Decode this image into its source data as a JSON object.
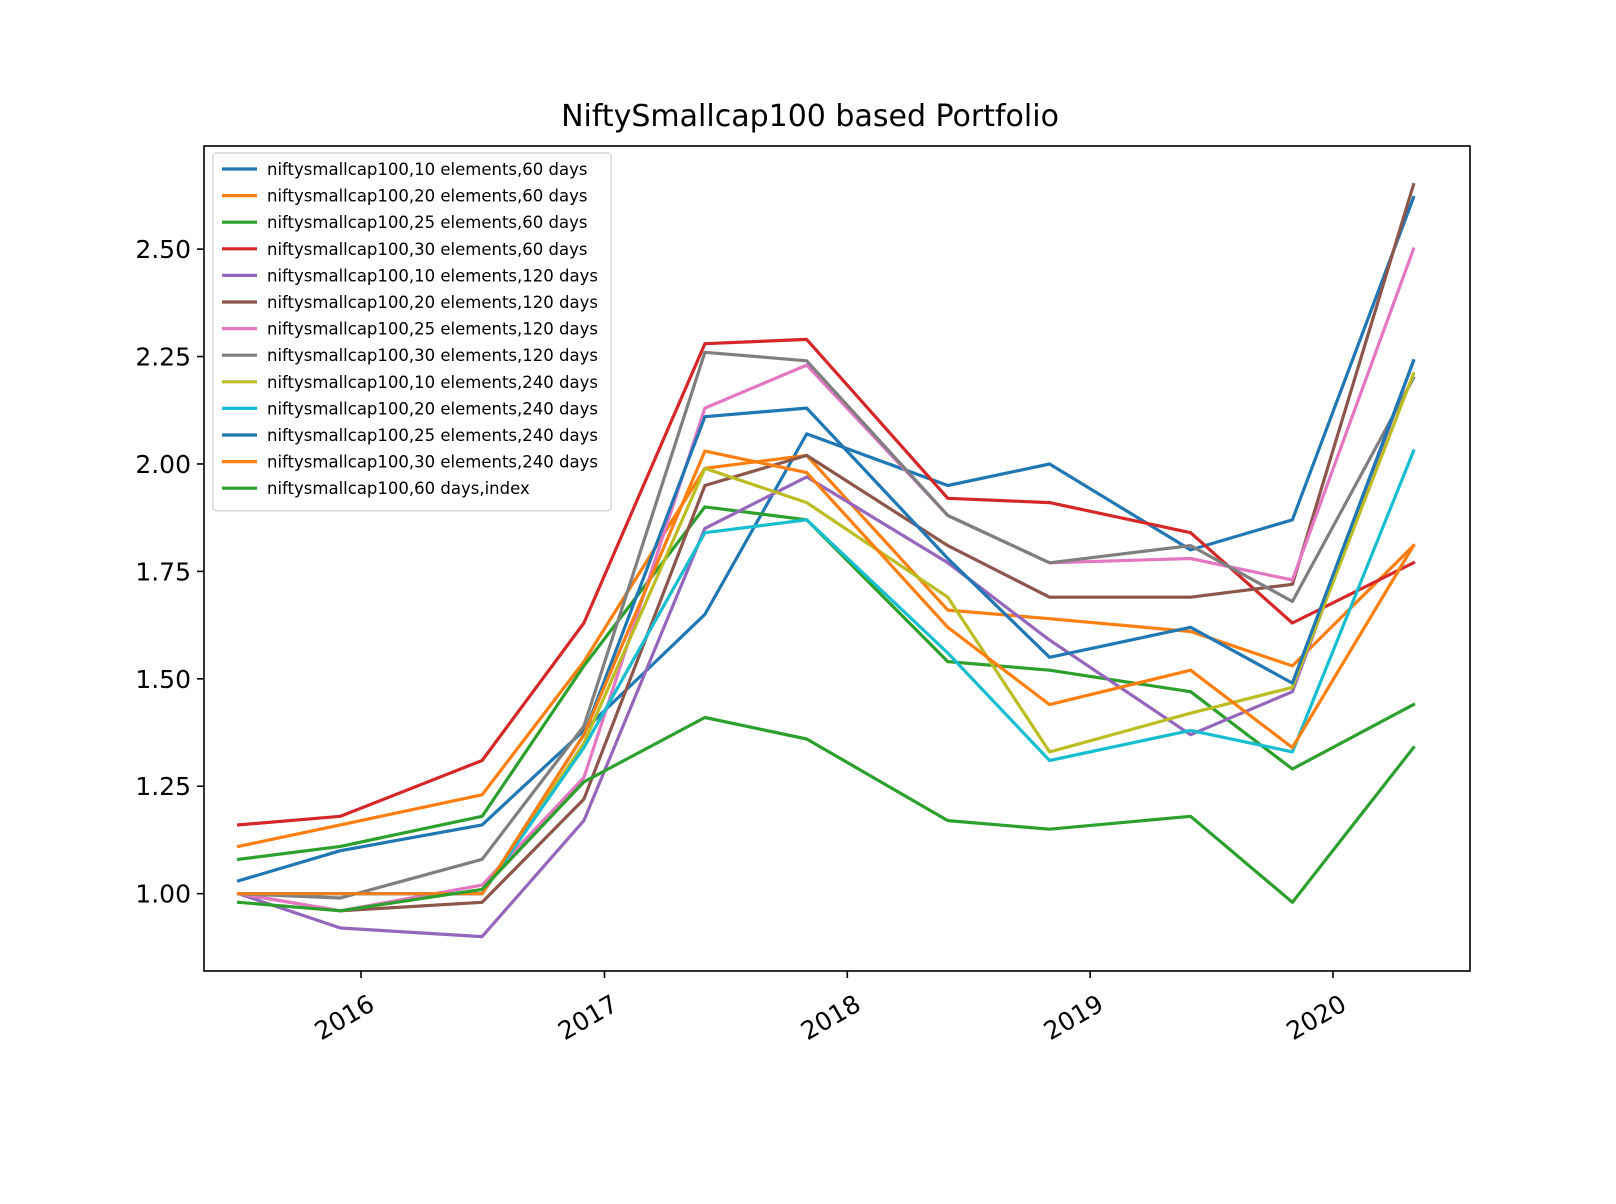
{
  "chart_data": {
    "type": "line",
    "title": "NiftySmallcap100 based Portfolio",
    "xlabel": "",
    "ylabel": "",
    "x": [
      "2015-07-01",
      "2015-12-01",
      "2016-07-01",
      "2016-12-01",
      "2017-06-01",
      "2017-11-01",
      "2018-06-01",
      "2018-11-01",
      "2019-06-01",
      "2019-11-01",
      "2020-05-01"
    ],
    "xlim": [
      "2015-05-10",
      "2020-07-25"
    ],
    "ylim": [
      0.82,
      2.74
    ],
    "xticks": [
      {
        "label": "2016",
        "date": "2016-01-01"
      },
      {
        "label": "2017",
        "date": "2017-01-01"
      },
      {
        "label": "2018",
        "date": "2018-01-01"
      },
      {
        "label": "2019",
        "date": "2019-01-01"
      },
      {
        "label": "2020",
        "date": "2020-01-01"
      }
    ],
    "yticks": [
      {
        "label": "1.00",
        "value": 1.0
      },
      {
        "label": "1.25",
        "value": 1.25
      },
      {
        "label": "1.50",
        "value": 1.5
      },
      {
        "label": "1.75",
        "value": 1.75
      },
      {
        "label": "2.00",
        "value": 2.0
      },
      {
        "label": "2.25",
        "value": 2.25
      },
      {
        "label": "2.50",
        "value": 2.5
      }
    ],
    "grid": false,
    "legend_position": "top-left",
    "series": [
      {
        "name": "niftysmallcap100,10 elements,60 days",
        "color": "#1f77b4",
        "values": [
          1.03,
          1.1,
          1.16,
          1.38,
          1.65,
          2.07,
          1.95,
          2.0,
          1.8,
          1.87,
          2.62
        ]
      },
      {
        "name": "niftysmallcap100,20 elements,60 days",
        "color": "#ff7f0e",
        "values": [
          1.11,
          1.16,
          1.23,
          1.54,
          1.99,
          2.02,
          1.66,
          1.64,
          1.61,
          1.53,
          1.81
        ]
      },
      {
        "name": "niftysmallcap100,25 elements,60 days",
        "color": "#2ca02c",
        "values": [
          1.08,
          1.11,
          1.18,
          1.53,
          1.9,
          1.87,
          1.54,
          1.52,
          1.47,
          1.29,
          1.44
        ]
      },
      {
        "name": "niftysmallcap100,30 elements,60 days",
        "color": "#d62728",
        "values": [
          1.16,
          1.18,
          1.31,
          1.63,
          2.28,
          2.29,
          1.92,
          1.91,
          1.84,
          1.63,
          1.77
        ]
      },
      {
        "name": "niftysmallcap100,10 elements,120 days",
        "color": "#9467bd",
        "values": [
          1.0,
          0.92,
          0.9,
          1.17,
          1.85,
          1.97,
          1.77,
          1.59,
          1.37,
          1.47,
          2.24
        ]
      },
      {
        "name": "niftysmallcap100,20 elements,120 days",
        "color": "#8c564b",
        "values": [
          1.0,
          0.96,
          0.98,
          1.22,
          1.95,
          2.02,
          1.81,
          1.69,
          1.69,
          1.72,
          2.65
        ]
      },
      {
        "name": "niftysmallcap100,25 elements,120 days",
        "color": "#e377c2",
        "values": [
          1.0,
          0.96,
          1.02,
          1.27,
          2.13,
          2.23,
          1.88,
          1.77,
          1.78,
          1.73,
          2.5
        ]
      },
      {
        "name": "niftysmallcap100,30 elements,120 days",
        "color": "#7f7f7f",
        "values": [
          1.0,
          0.99,
          1.08,
          1.39,
          2.26,
          2.24,
          1.88,
          1.77,
          1.81,
          1.68,
          2.2
        ]
      },
      {
        "name": "niftysmallcap100,10 elements,240 days",
        "color": "#bcbd22",
        "values": [
          1.0,
          1.0,
          1.0,
          1.35,
          1.99,
          1.91,
          1.69,
          1.33,
          1.42,
          1.48,
          2.21
        ]
      },
      {
        "name": "niftysmallcap100,20 elements,240 days",
        "color": "#17becf",
        "values": [
          1.0,
          1.0,
          1.0,
          1.34,
          1.84,
          1.87,
          1.56,
          1.31,
          1.38,
          1.33,
          2.03
        ]
      },
      {
        "name": "niftysmallcap100,25 elements,240 days",
        "color": "#1f77b4",
        "values": [
          1.0,
          1.0,
          1.0,
          1.37,
          2.11,
          2.13,
          1.78,
          1.55,
          1.62,
          1.49,
          2.24
        ]
      },
      {
        "name": "niftysmallcap100,30 elements,240 days",
        "color": "#ff7f0e",
        "values": [
          1.0,
          1.0,
          1.0,
          1.37,
          2.03,
          1.98,
          1.62,
          1.44,
          1.52,
          1.34,
          1.81
        ]
      },
      {
        "name": "niftysmallcap100,60 days,index",
        "color": "#2ca02c",
        "values": [
          0.98,
          0.96,
          1.01,
          1.26,
          1.41,
          1.36,
          1.17,
          1.15,
          1.18,
          0.98,
          1.34
        ]
      }
    ]
  }
}
